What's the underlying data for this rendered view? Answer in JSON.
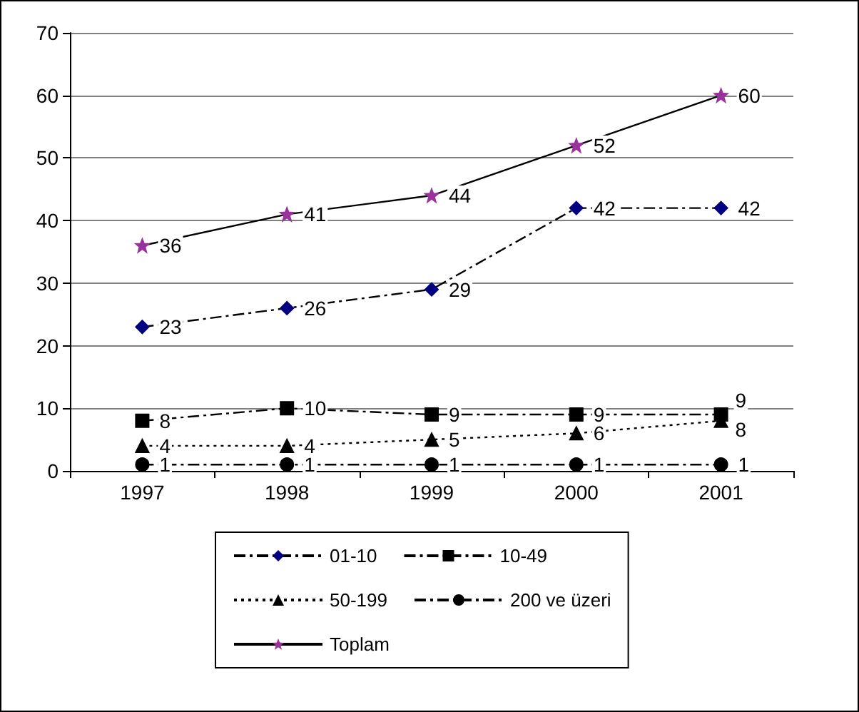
{
  "chart_data": {
    "type": "line",
    "categories": [
      "1997",
      "1998",
      "1999",
      "2000",
      "2001"
    ],
    "series": [
      {
        "name": "01-10",
        "color": "#000080",
        "values": [
          23,
          26,
          29,
          42,
          42
        ],
        "marker": "diamond",
        "line_style": "dashed"
      },
      {
        "name": "10-49",
        "color": "#000000",
        "values": [
          8,
          10,
          9,
          9,
          9
        ],
        "marker": "square",
        "line_style": "dashed"
      },
      {
        "name": "50-199",
        "color": "#000000",
        "values": [
          4,
          4,
          5,
          6,
          8
        ],
        "marker": "triangle",
        "line_style": "dotted"
      },
      {
        "name": "200 ve üzeri",
        "color": "#000000",
        "values": [
          1,
          1,
          1,
          1,
          1
        ],
        "marker": "circle",
        "line_style": "dashed"
      },
      {
        "name": "Toplam",
        "color": "#993399",
        "values": [
          36,
          41,
          44,
          52,
          60
        ],
        "marker": "star",
        "line_style": "solid"
      }
    ],
    "ylim": [
      0,
      70
    ],
    "yticks": [
      0,
      10,
      20,
      30,
      40,
      50,
      60,
      70
    ],
    "grid": "y",
    "legend": "bottom",
    "data_labels": true
  }
}
